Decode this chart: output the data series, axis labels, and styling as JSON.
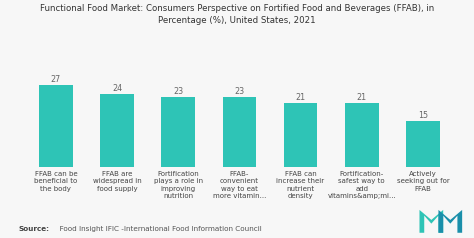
{
  "title_line1": "Functional Food Market: Consumers Perspective on Fortified Food and Beverages (FFAB), in",
  "title_line2": "Percentage (%), United States, 2021",
  "categories": [
    "FFAB can be\nbeneficial to\nthe body",
    "FFAB are\nwidespread in\nfood supply",
    "Fortification\nplays a role in\nimproving\nnutrition",
    "FFAB-\nconvenient\nway to eat\nmore vitamin...",
    "FFAB can\nincrease their\nnutrient\ndensity",
    "Fortification-\nsafest way to\nadd\nvitamins&amp;mi...",
    "Actively\nseeking out for\nFFAB"
  ],
  "values": [
    27,
    24,
    23,
    23,
    21,
    21,
    15
  ],
  "bar_color": "#2ec4b6",
  "background_color": "#f7f7f7",
  "source_bold": "Source:",
  "source_rest": "  Food Insight IFIC -International Food Information Council",
  "title_fontsize": 6.2,
  "label_fontsize": 5.0,
  "value_fontsize": 5.8,
  "source_fontsize": 5.2,
  "ylim": [
    0,
    33
  ],
  "logo_color1": "#1a8faa",
  "logo_color2": "#2ec4b6"
}
